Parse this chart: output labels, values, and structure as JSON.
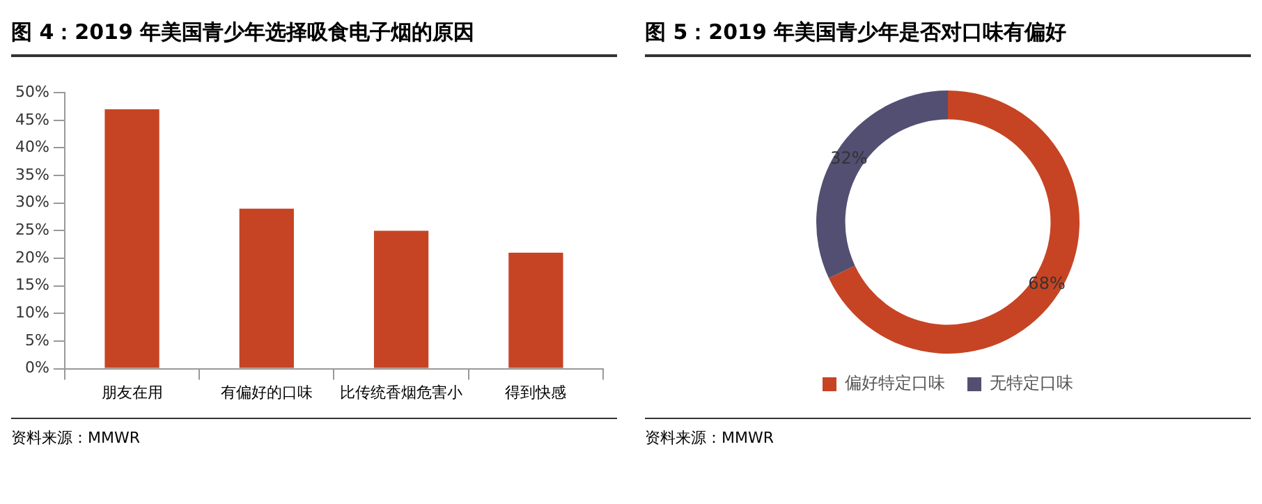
{
  "chart_data": [
    {
      "type": "bar",
      "title": "图 4：2019 年美国青少年选择吸食电子烟的原因",
      "categories": [
        "朋友在用",
        "有偏好的口味",
        "比传统香烟危害小",
        "得到快感"
      ],
      "values": [
        47,
        29,
        25,
        21
      ],
      "color": "#c64424",
      "ylim": [
        0,
        50
      ],
      "yticks": [
        {
          "value": 0,
          "label": "0%"
        },
        {
          "value": 5,
          "label": "5%"
        },
        {
          "value": 10,
          "label": "10%"
        },
        {
          "value": 15,
          "label": "15%"
        },
        {
          "value": 20,
          "label": "20%"
        },
        {
          "value": 25,
          "label": "25%"
        },
        {
          "value": 30,
          "label": "30%"
        },
        {
          "value": 35,
          "label": "35%"
        },
        {
          "value": 40,
          "label": "40%"
        },
        {
          "value": 45,
          "label": "45%"
        },
        {
          "value": 50,
          "label": "50%"
        }
      ],
      "grid": false,
      "legend": false,
      "annotations": [
        "资料来源：MMWR"
      ]
    },
    {
      "type": "donut",
      "title": "图 5：2019 年美国青少年是否对口味有偏好",
      "categories": [
        "偏好特定口味",
        "无特定口味"
      ],
      "values": [
        68,
        32
      ],
      "colors": [
        "#c64424",
        "#534f72"
      ],
      "value_labels": [
        "68%",
        "32%"
      ],
      "legend": "bottom",
      "annotations": [
        "资料来源：MMWR"
      ]
    }
  ]
}
